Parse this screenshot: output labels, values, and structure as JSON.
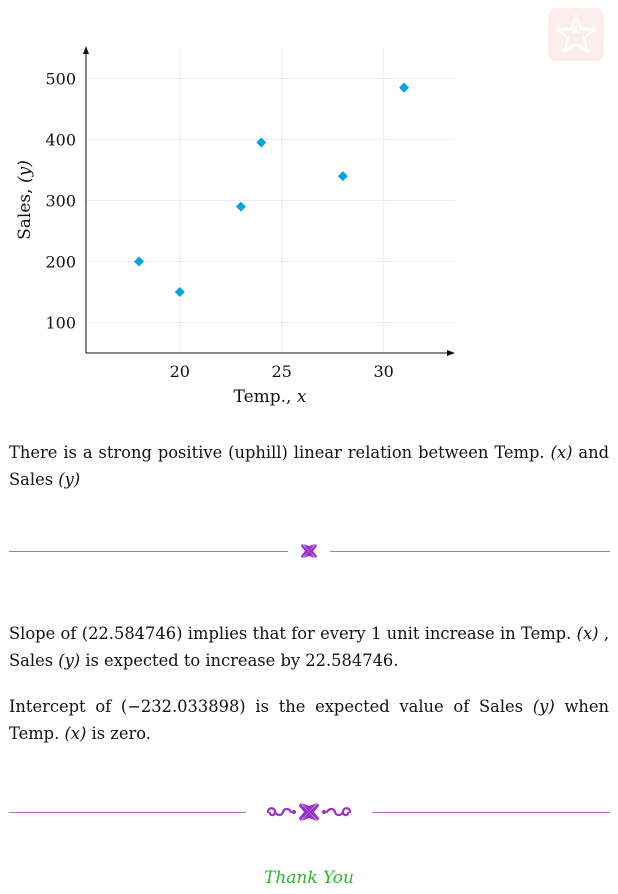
{
  "logo": {
    "name": "star-logo",
    "color": "#fdecec"
  },
  "chart_data": {
    "type": "scatter",
    "xlabel": "Temp., ",
    "xlabel_var": "x",
    "ylabel": "Sales, ",
    "ylabel_var": "(y)",
    "xlim": [
      15.4,
      33.5
    ],
    "ylim": [
      50,
      550
    ],
    "xticks": [
      20,
      25,
      30
    ],
    "yticks": [
      100,
      200,
      300,
      400,
      500
    ],
    "grid": true,
    "marker": "diamond",
    "color": "#00a4e4",
    "points": [
      {
        "x": 18,
        "y": 200
      },
      {
        "x": 20,
        "y": 150
      },
      {
        "x": 23,
        "y": 290
      },
      {
        "x": 24,
        "y": 395
      },
      {
        "x": 28,
        "y": 340
      },
      {
        "x": 31,
        "y": 485
      }
    ]
  },
  "text": {
    "relation_a": "There is a strong positive (uphill) linear relation between Temp. ",
    "relation_var_x": "(x)",
    "relation_b": " and Sales ",
    "relation_var_y": "(y)",
    "slope_a": "Slope of (22.584746) implies that for every 1 unit increase in Temp. ",
    "slope_var_x": "(x)",
    "slope_b": " , Sales ",
    "slope_var_y": "(y)",
    "slope_c": " is expected to increase by 22.584746.",
    "intercept_a": "Intercept of (−232.033898) is the expected value of Sales ",
    "intercept_var_y": "(y)",
    "intercept_b": " when Temp. ",
    "intercept_var_x": "(x)",
    "intercept_c": " is zero.",
    "thank_you": "Thank You"
  },
  "style": {
    "divider_color": "#b86bcc",
    "ornament_color": "#9b30c9",
    "thank_you_color": "#2bb62b"
  }
}
